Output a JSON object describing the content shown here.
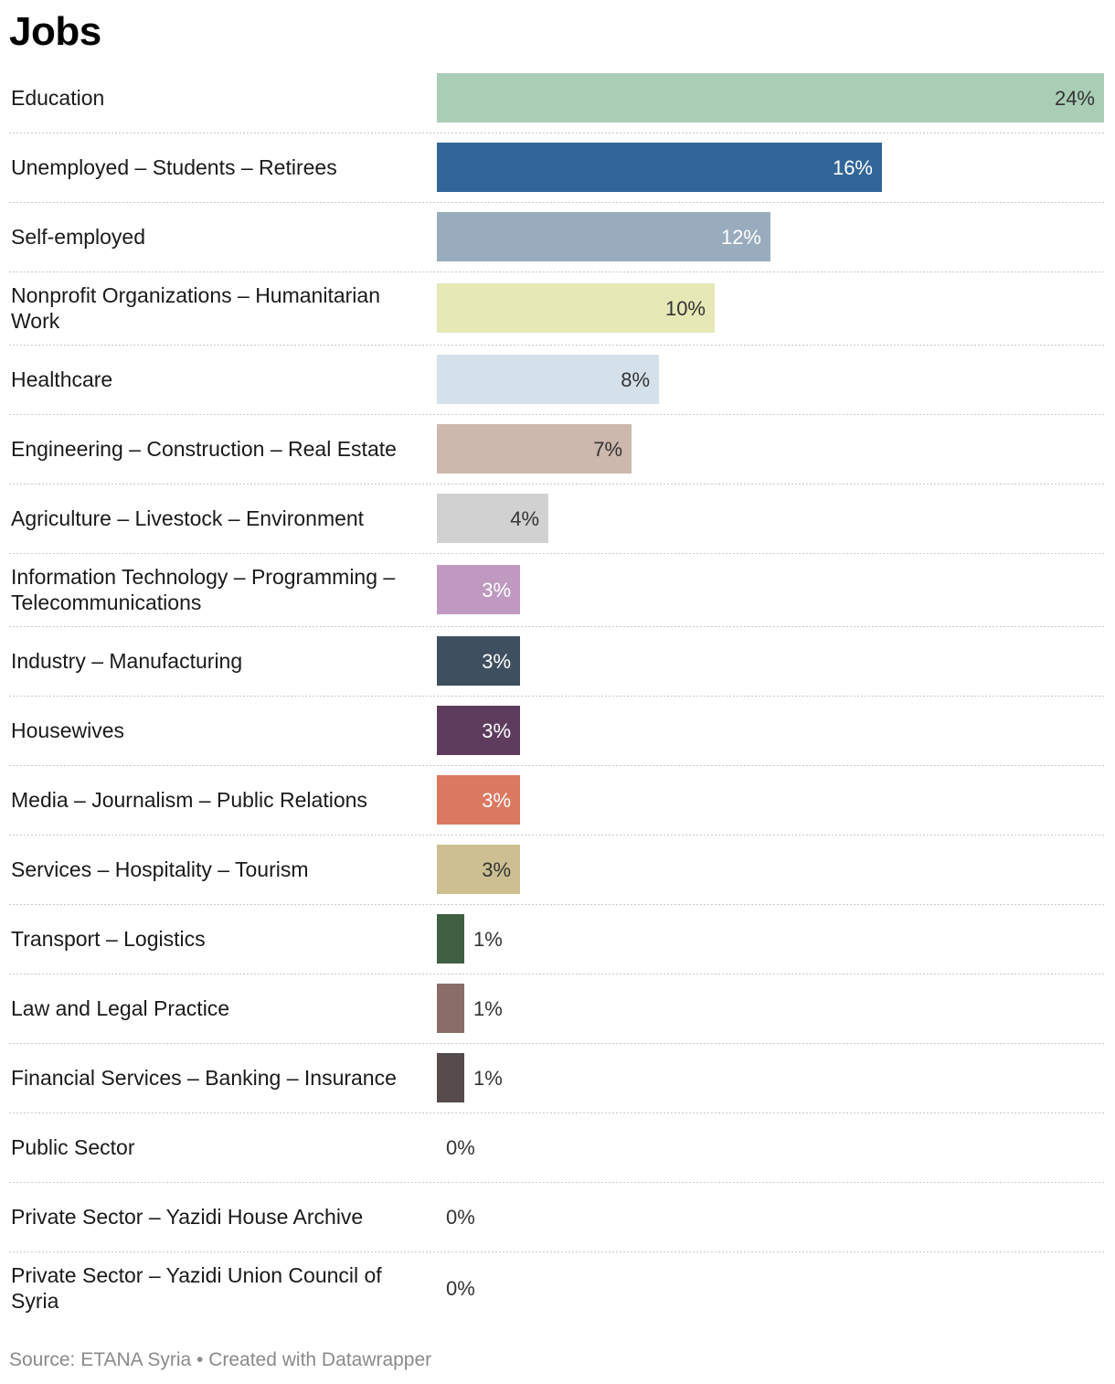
{
  "chart_data": {
    "type": "bar",
    "orientation": "horizontal",
    "title": "Jobs",
    "categories": [
      [
        "Education"
      ],
      [
        "Unemployed – Students – Retirees"
      ],
      [
        "Self-employed"
      ],
      [
        "Nonprofit Organizations – Humanitarian",
        "Work"
      ],
      [
        "Healthcare"
      ],
      [
        "Engineering – Construction – Real Estate"
      ],
      [
        "Agriculture – Livestock – Environment"
      ],
      [
        "Information Technology – Programming –",
        "Telecommunications"
      ],
      [
        "Industry – Manufacturing"
      ],
      [
        "Housewives"
      ],
      [
        "Media – Journalism – Public Relations"
      ],
      [
        "Services – Hospitality – Tourism"
      ],
      [
        "Transport – Logistics"
      ],
      [
        "Law and Legal Practice"
      ],
      [
        "Financial Services – Banking – Insurance"
      ],
      [
        "Public Sector"
      ],
      [
        "Private Sector – Yazidi House Archive"
      ],
      [
        "Private Sector – Yazidi Union Council of",
        "Syria"
      ]
    ],
    "values": [
      24,
      16,
      12,
      10,
      8,
      7,
      4,
      3,
      3,
      3,
      3,
      3,
      1,
      1,
      1,
      0,
      0,
      0
    ],
    "value_labels": [
      "24%",
      "16%",
      "12%",
      "10%",
      "8%",
      "7%",
      "4%",
      "3%",
      "3%",
      "3%",
      "3%",
      "3%",
      "1%",
      "1%",
      "1%",
      "0%",
      "0%",
      "0%"
    ],
    "colors": [
      "#aacdb6",
      "#326698",
      "#99acbd",
      "#e6e8b6",
      "#d4e0ea",
      "#ccb8ad",
      "#d1d1d1",
      "#bf99c0",
      "#3e5060",
      "#5d3c5e",
      "#db7860",
      "#cdbf91",
      "#3f6042",
      "#8a6d69",
      "#574b4c",
      "#cccccc",
      "#cccccc",
      "#cccccc"
    ],
    "label_colors": [
      "#333333",
      "#ffffff",
      "#ffffff",
      "#333333",
      "#333333",
      "#333333",
      "#333333",
      "#ffffff",
      "#ffffff",
      "#ffffff",
      "#ffffff",
      "#333333",
      "#333333",
      "#333333",
      "#333333",
      "#333333",
      "#333333",
      "#333333"
    ],
    "xlim": [
      0,
      24
    ],
    "xlabel": "",
    "ylabel": "",
    "grid": false,
    "legend": "none"
  },
  "footer": "Source: ETANA Syria • Created with Datawrapper"
}
